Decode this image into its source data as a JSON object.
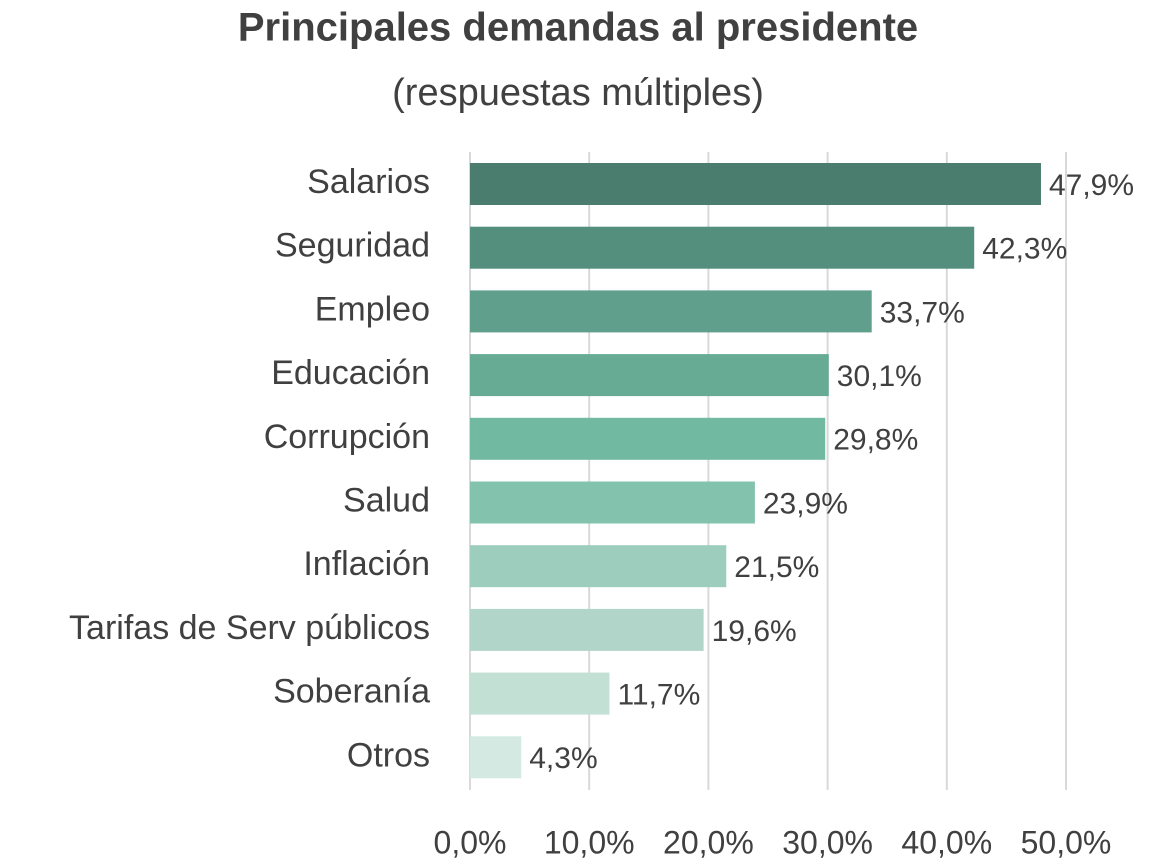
{
  "chart_data": {
    "type": "bar",
    "orientation": "horizontal",
    "title": "Principales demandas al presidente",
    "subtitle": "(respuestas múltiples)",
    "categories": [
      "Salarios",
      "Seguridad",
      "Empleo",
      "Educación",
      "Corrupción",
      "Salud",
      "Inflación",
      "Tarifas de Serv públicos",
      "Soberanía",
      "Otros"
    ],
    "values": [
      47.9,
      42.3,
      33.7,
      30.1,
      29.8,
      23.9,
      21.5,
      19.6,
      11.7,
      4.3
    ],
    "value_labels": [
      "47,9%",
      "42,3%",
      "33,7%",
      "30,1%",
      "29,8%",
      "23,9%",
      "21,5%",
      "19,6%",
      "11,7%",
      "4,3%"
    ],
    "colors": [
      "#4b7d6e",
      "#548f7e",
      "#5f9f8b",
      "#67ab95",
      "#72b9a2",
      "#83c2ad",
      "#9dcdbd",
      "#b1d6c9",
      "#c3e0d5",
      "#d3e9e2"
    ],
    "xlim": [
      0,
      50
    ],
    "xticks": [
      {
        "value": 0,
        "label": "0,0%"
      },
      {
        "value": 10,
        "label": "10,0%"
      },
      {
        "value": 20,
        "label": "20,0%"
      },
      {
        "value": 30,
        "label": "30,0%"
      },
      {
        "value": 40,
        "label": "40,0%"
      },
      {
        "value": 50,
        "label": "50,0%"
      }
    ],
    "grid": true
  }
}
